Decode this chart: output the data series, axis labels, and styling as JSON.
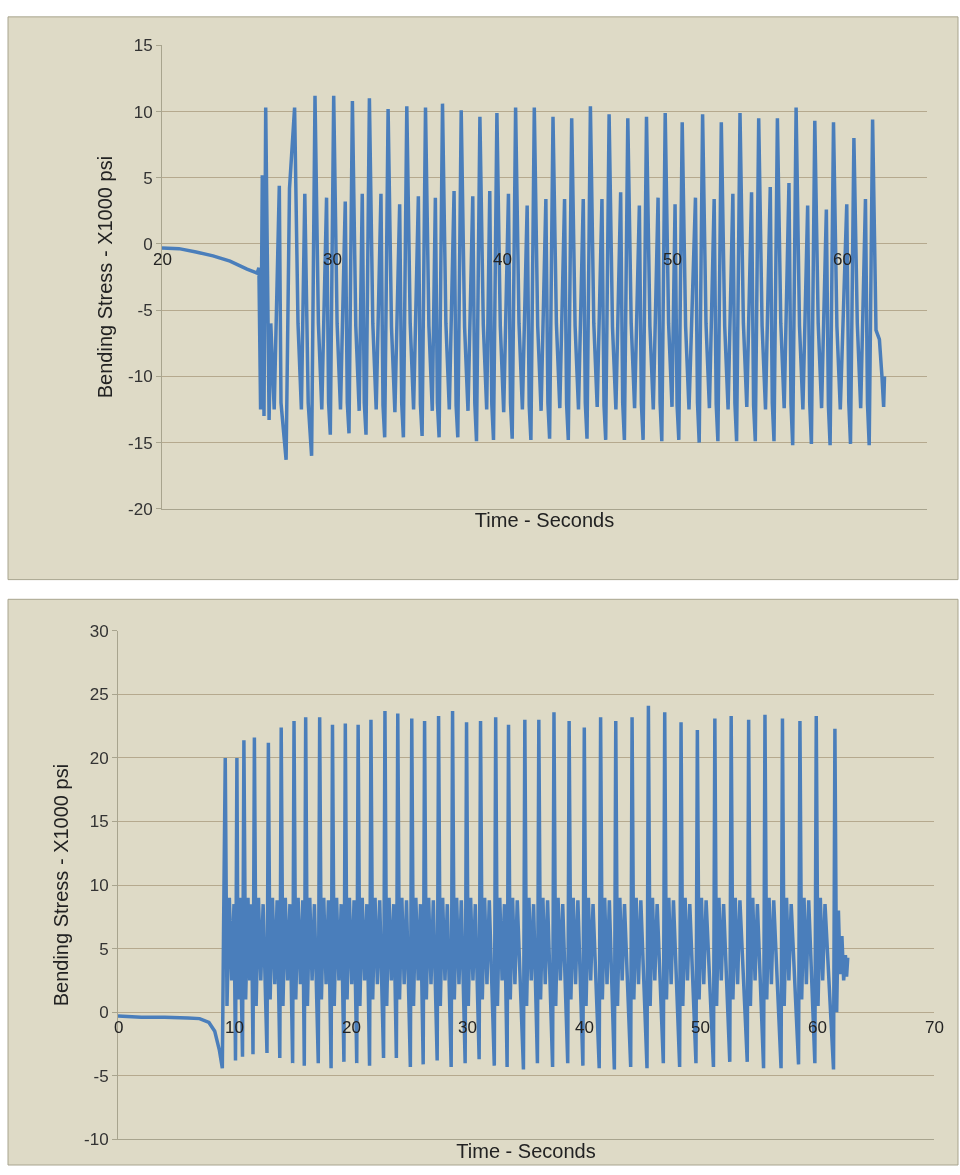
{
  "chart_data": [
    {
      "type": "line",
      "xlabel": "Time - Seconds",
      "ylabel": "Bending Stress - X1000 psi",
      "xlim": [
        20,
        65
      ],
      "xticks": [
        20,
        30,
        40,
        50,
        60
      ],
      "ylim": [
        -20,
        15
      ],
      "yticks": [
        -20,
        -15,
        -10,
        -5,
        0,
        5,
        10,
        15
      ],
      "grid": "y",
      "series": [
        {
          "color": "#4a7ebb",
          "x": [
            20,
            21,
            22,
            23,
            24,
            25,
            25.6,
            25.7,
            25.8,
            25.9,
            26.0,
            26.1,
            26.3,
            26.4,
            26.6,
            26.9,
            27.0,
            27.3,
            27.5,
            27.8,
            28.0,
            28.2,
            28.4,
            28.6,
            28.8,
            29.0,
            29.2,
            29.4,
            29.68,
            29.8,
            29.9,
            30.1,
            30.3,
            30.5,
            30.78,
            30.9,
            31.0,
            31.2,
            31.4,
            31.6,
            31.78,
            31.9,
            32.0,
            32.2,
            32.4,
            32.6,
            32.88,
            33.0,
            33.1,
            33.3,
            33.5,
            33.7,
            33.98,
            34.1,
            34.2,
            34.4,
            34.6,
            34.8,
            35.08,
            35.2,
            35.3,
            35.5,
            35.7,
            35.9,
            36.08,
            36.2,
            36.3,
            36.5,
            36.7,
            36.9,
            37.18,
            37.3,
            37.4,
            37.6,
            37.8,
            38.0,
            38.28,
            38.4,
            38.5,
            38.7,
            38.9,
            39.1,
            39.28,
            39.4,
            39.5,
            39.7,
            39.9,
            40.1,
            40.38,
            40.5,
            40.6,
            40.8,
            41.0,
            41.2,
            41.48,
            41.6,
            41.7,
            41.9,
            42.1,
            42.3,
            42.58,
            42.7,
            42.8,
            43.0,
            43.2,
            43.4,
            43.68,
            43.8,
            43.9,
            44.1,
            44.3,
            44.5,
            44.78,
            44.9,
            45.0,
            45.2,
            45.4,
            45.6,
            45.88,
            46.0,
            46.1,
            46.3,
            46.5,
            46.7,
            46.98,
            47.1,
            47.2,
            47.4,
            47.6,
            47.8,
            48.08,
            48.2,
            48.3,
            48.5,
            48.7,
            48.9,
            49.18,
            49.3,
            49.4,
            49.6,
            49.8,
            50.0,
            50.18,
            50.3,
            50.4,
            50.6,
            50.8,
            51.0,
            51.38,
            51.5,
            51.6,
            51.8,
            52.0,
            52.2,
            52.48,
            52.6,
            52.7,
            52.9,
            53.1,
            53.3,
            53.58,
            53.7,
            53.8,
            54.0,
            54.2,
            54.4,
            54.68,
            54.8,
            54.9,
            55.1,
            55.3,
            55.5,
            55.78,
            55.9,
            56.0,
            56.2,
            56.4,
            56.6,
            56.88,
            57.0,
            57.1,
            57.3,
            57.5,
            57.7,
            57.98,
            58.1,
            58.2,
            58.4,
            58.6,
            58.8,
            59.08,
            59.2,
            59.3,
            59.5,
            59.7,
            59.9,
            60.28,
            60.4,
            60.5,
            60.7,
            60.9,
            61.1,
            61.38,
            61.5,
            61.6,
            61.8,
            62.0,
            62.2,
            62.35,
            62.45,
            62.5
          ],
          "values": [
            -0.3,
            -0.35,
            -0.6,
            -0.9,
            -1.3,
            -1.9,
            -2.2,
            -1.8,
            -12.5,
            5.2,
            -13,
            10.3,
            -13.3,
            -6,
            -12.5,
            4.4,
            -12,
            -16.3,
            4.2,
            10.3,
            -6,
            -12.5,
            3.8,
            -12,
            -16,
            11.2,
            -6,
            -12.5,
            3.5,
            -12,
            -14.4,
            11.2,
            -6,
            -12.5,
            3.2,
            -12,
            -14.3,
            10.8,
            -6.2,
            -12.6,
            3.8,
            -12,
            -14.4,
            11.0,
            -6,
            -12.5,
            3.8,
            -12.2,
            -14.6,
            10.2,
            -6.3,
            -12.7,
            3.0,
            -12,
            -14.6,
            10.4,
            -6,
            -12.5,
            3.6,
            -12.1,
            -14.5,
            10.3,
            -6.2,
            -12.6,
            3.5,
            -12,
            -14.6,
            10.6,
            -6,
            -12.5,
            4.0,
            -12.2,
            -14.6,
            10.1,
            -6.3,
            -12.6,
            3.6,
            -12,
            -14.9,
            9.6,
            -6.1,
            -12.5,
            4.0,
            -12.1,
            -14.8,
            9.9,
            -6.2,
            -12.7,
            3.8,
            -12,
            -14.7,
            10.3,
            -6,
            -12.5,
            2.9,
            -12.2,
            -14.8,
            10.3,
            -6.2,
            -12.6,
            3.4,
            -12,
            -14.7,
            9.6,
            -6,
            -12.4,
            3.4,
            -12.1,
            -14.8,
            9.5,
            -6.2,
            -12.5,
            3.4,
            -12,
            -14.7,
            10.4,
            -6,
            -12.3,
            3.4,
            -12.2,
            -14.8,
            9.8,
            -6.3,
            -12.5,
            3.9,
            -12,
            -14.8,
            9.5,
            -6,
            -12.4,
            2.9,
            -12.1,
            -14.8,
            9.6,
            -6.2,
            -12.5,
            3.5,
            -12,
            -14.9,
            9.9,
            -6,
            -12.3,
            3.0,
            -12.2,
            -14.8,
            9.2,
            -6.2,
            -12.5,
            3.5,
            -12,
            -15.0,
            9.8,
            -6,
            -12.4,
            3.4,
            -12.1,
            -14.9,
            9.2,
            -6.2,
            -12.5,
            3.8,
            -12,
            -14.9,
            9.9,
            -6,
            -12.3,
            3.9,
            -12.2,
            -14.9,
            9.5,
            -6.2,
            -12.5,
            4.3,
            -12,
            -14.9,
            9.5,
            -6,
            -12.4,
            4.6,
            -12.1,
            -15.2,
            10.3,
            -6.2,
            -12.5,
            2.9,
            -12,
            -15.1,
            9.3,
            -6,
            -12.4,
            2.6,
            -12.2,
            -15.2,
            9.2,
            -6.2,
            -12.5,
            3.0,
            -12,
            -15.1,
            8.0,
            -6,
            -12.4,
            3.4,
            -12.1,
            -15.2,
            9.4,
            -6.5,
            -7.2,
            -10,
            -12.3,
            -10
          ]
        }
      ]
    },
    {
      "type": "line",
      "xlabel": "Time - Seconds",
      "ylabel": "Bending Stress - X1000 psi",
      "xlim": [
        0,
        70
      ],
      "xticks": [
        0,
        10,
        20,
        30,
        40,
        50,
        60,
        70
      ],
      "ylim": [
        -10,
        30
      ],
      "yticks": [
        -10,
        -5,
        0,
        5,
        10,
        15,
        20,
        25,
        30
      ],
      "grid": "y",
      "series": [
        {
          "color": "#4a7ebb",
          "x": [
            0,
            2,
            4,
            6,
            7,
            7.8,
            8.3,
            8.7,
            8.95,
            9.05,
            9.2,
            9.35,
            9.55,
            9.75,
            9.95,
            10.08,
            10.2,
            10.3,
            10.45,
            10.68,
            10.8,
            10.95,
            11.15,
            11.3,
            11.45,
            11.58,
            11.7,
            11.85,
            12.05,
            12.25,
            12.45,
            12.78,
            12.9,
            13.05,
            13.25,
            13.45,
            13.65,
            13.88,
            14.0,
            14.15,
            14.35,
            14.55,
            14.75,
            14.98,
            15.1,
            15.25,
            15.45,
            15.65,
            15.85,
            15.98,
            16.1,
            16.25,
            16.45,
            16.65,
            16.85,
            17.18,
            17.3,
            17.45,
            17.65,
            17.85,
            18.05,
            18.28,
            18.4,
            18.55,
            18.75,
            18.95,
            19.15,
            19.38,
            19.5,
            19.65,
            19.85,
            20.05,
            20.25,
            20.48,
            20.6,
            20.75,
            20.95,
            21.15,
            21.35,
            21.58,
            21.7,
            21.85,
            22.05,
            22.25,
            22.45,
            22.78,
            22.9,
            23.05,
            23.25,
            23.45,
            23.65,
            23.88,
            24.0,
            24.15,
            24.35,
            24.55,
            24.75,
            25.08,
            25.2,
            25.35,
            25.55,
            25.75,
            25.95,
            26.18,
            26.3,
            26.45,
            26.65,
            26.85,
            27.05,
            27.38,
            27.5,
            27.65,
            27.85,
            28.05,
            28.25,
            28.58,
            28.7,
            28.85,
            29.05,
            29.25,
            29.45,
            29.78,
            29.9,
            30.05,
            30.25,
            30.45,
            30.65,
            30.98,
            31.1,
            31.25,
            31.45,
            31.65,
            31.85,
            32.28,
            32.4,
            32.55,
            32.75,
            32.95,
            33.15,
            33.38,
            33.5,
            33.65,
            33.85,
            34.05,
            34.25,
            34.78,
            34.9,
            35.05,
            35.25,
            35.45,
            35.65,
            35.98,
            36.1,
            36.25,
            36.45,
            36.65,
            36.85,
            37.28,
            37.4,
            37.55,
            37.75,
            37.95,
            38.15,
            38.58,
            38.7,
            38.85,
            39.05,
            39.25,
            39.45,
            39.88,
            40.0,
            40.15,
            40.35,
            40.55,
            40.75,
            41.28,
            41.4,
            41.55,
            41.75,
            41.95,
            42.15,
            42.58,
            42.7,
            42.85,
            43.05,
            43.25,
            43.45,
            43.98,
            44.1,
            44.25,
            44.45,
            44.65,
            44.85,
            45.38,
            45.5,
            45.65,
            45.85,
            46.05,
            46.25,
            46.78,
            46.9,
            47.05,
            47.25,
            47.45,
            47.65,
            48.18,
            48.3,
            48.45,
            48.65,
            48.85,
            49.05,
            49.58,
            49.7,
            49.85,
            50.05,
            50.25,
            50.45,
            51.08,
            51.2,
            51.35,
            51.55,
            51.75,
            51.95,
            52.48,
            52.6,
            52.75,
            52.95,
            53.15,
            53.35,
            53.98,
            54.1,
            54.25,
            54.45,
            54.65,
            54.85,
            55.38,
            55.5,
            55.65,
            55.85,
            56.05,
            56.25,
            56.88,
            57.0,
            57.15,
            57.35,
            57.55,
            57.75,
            58.38,
            58.5,
            58.65,
            58.85,
            59.05,
            59.25,
            59.78,
            59.9,
            60.05,
            60.25,
            60.45,
            60.65,
            61.38,
            61.5,
            61.65,
            61.8,
            61.95,
            62.1,
            62.25,
            62.4,
            62.5,
            62.6
          ],
          "values": [
            -0.3,
            -0.4,
            -0.4,
            -0.45,
            -0.5,
            -0.8,
            -1.5,
            -3,
            -4.4,
            6,
            20.0,
            0.5,
            9,
            2.5,
            8.5,
            -3.8,
            20.0,
            1,
            9,
            -3.5,
            21.4,
            1,
            9,
            2.5,
            8.5,
            -3.3,
            21.6,
            0.5,
            9,
            2.5,
            8.5,
            -3.2,
            21.2,
            1,
            9,
            2.2,
            8.8,
            -3.6,
            22.4,
            0.5,
            9,
            2.5,
            8.5,
            -4.0,
            22.9,
            1,
            9,
            2.2,
            8.8,
            -4.2,
            23.2,
            0.5,
            9,
            2.5,
            8.5,
            -4.0,
            23.2,
            1,
            9,
            2.2,
            8.8,
            -4.4,
            22.6,
            0.5,
            9,
            2.5,
            8.5,
            -3.9,
            22.7,
            1,
            9,
            2.2,
            8.8,
            -4.0,
            22.6,
            0.5,
            9,
            2.5,
            8.5,
            -4.2,
            23.0,
            1,
            9,
            2.2,
            8.8,
            -3.6,
            23.7,
            0.5,
            9,
            2.5,
            8.5,
            -3.6,
            23.5,
            1,
            9,
            2.2,
            8.8,
            -4.3,
            23.1,
            0.5,
            9,
            2.5,
            8.5,
            -4.1,
            22.9,
            1,
            9,
            2.2,
            8.8,
            -3.8,
            23.3,
            0.5,
            9,
            2.5,
            8.5,
            -4.3,
            23.7,
            1,
            9,
            2.2,
            8.8,
            -4.0,
            22.8,
            0.5,
            9,
            2.5,
            8.5,
            -3.7,
            22.9,
            1,
            9,
            2.2,
            8.8,
            -4.2,
            23.2,
            0.5,
            9,
            2.5,
            8.5,
            -4.3,
            22.6,
            1,
            9,
            2.2,
            8.8,
            -4.5,
            23.0,
            0.5,
            9,
            2.5,
            8.5,
            -4.0,
            23.0,
            1,
            9,
            2.2,
            8.8,
            -4.3,
            23.6,
            0.5,
            9,
            2.5,
            8.5,
            -4.0,
            22.9,
            1,
            9,
            2.2,
            8.8,
            -4.2,
            22.4,
            0.5,
            9,
            2.5,
            8.5,
            -4.4,
            23.2,
            1,
            9,
            2.2,
            8.8,
            -4.5,
            22.9,
            0.5,
            9,
            2.5,
            8.5,
            -4.3,
            23.2,
            1,
            9,
            2.2,
            8.8,
            -4.4,
            24.1,
            0.5,
            9,
            2.5,
            8.5,
            -4.0,
            23.6,
            1,
            9,
            2.2,
            8.8,
            -4.3,
            22.8,
            0.5,
            9,
            2.5,
            8.5,
            -4.0,
            22.2,
            1,
            9,
            2.2,
            8.8,
            -4.3,
            23.1,
            0.5,
            9,
            2.5,
            8.5,
            -3.9,
            23.3,
            1,
            9,
            2.2,
            8.8,
            -3.9,
            23.0,
            0.5,
            9,
            2.5,
            8.5,
            -4.4,
            23.4,
            1,
            9,
            2.2,
            8.8,
            -4.4,
            23.1,
            0.5,
            9,
            2.5,
            8.5,
            -4.1,
            22.9,
            1,
            9,
            2.2,
            8.8,
            -4.0,
            23.3,
            0.5,
            9,
            2.5,
            8.5,
            -4.5,
            22.3,
            0,
            8,
            3,
            6,
            2.5,
            4.5,
            2.8,
            4.3
          ]
        }
      ]
    }
  ]
}
